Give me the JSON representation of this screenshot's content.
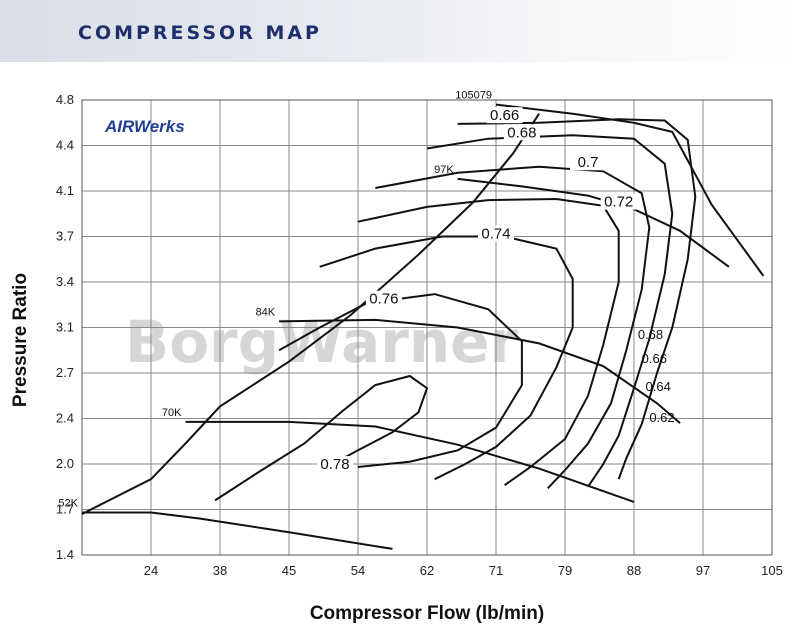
{
  "header": {
    "title": "COMPRESSOR MAP"
  },
  "brand": {
    "logo_text": "AIRWerks",
    "watermark": "BorgWarner"
  },
  "colors": {
    "header_text": "#1f2f6e",
    "logo": "#1f3f95",
    "lines": "#111111",
    "grid": "#7a7a7a",
    "watermark": "#c9c9c9"
  },
  "chart_data": {
    "type": "line",
    "title": "",
    "xlabel": "Compressor Flow (lb/min)",
    "ylabel": "Pressure Ratio",
    "xlim": [
      16,
      105
    ],
    "ylim": [
      1.4,
      4.8
    ],
    "x_ticks": [
      "24",
      "38",
      "45",
      "54",
      "62",
      "71",
      "79",
      "88",
      "97",
      "105"
    ],
    "y_ticks": [
      "1.4",
      "1.7",
      "2.0",
      "2.4",
      "2.7",
      "3.1",
      "3.4",
      "3.7",
      "4.1",
      "4.4",
      "4.8"
    ],
    "grid": true,
    "surge_line": [
      [
        16,
        1.67
      ],
      [
        24,
        1.9
      ],
      [
        31,
        2.18
      ],
      [
        38,
        2.48
      ],
      [
        45,
        2.8
      ],
      [
        53,
        3.18
      ],
      [
        61,
        3.58
      ],
      [
        68,
        4.0
      ],
      [
        73,
        4.35
      ],
      [
        76,
        4.68
      ]
    ],
    "speed_lines": [
      {
        "name": "52K",
        "points": [
          [
            16,
            1.68
          ],
          [
            24,
            1.68
          ],
          [
            34,
            1.64
          ],
          [
            45,
            1.55
          ],
          [
            58,
            1.44
          ]
        ]
      },
      {
        "name": "70K",
        "points": [
          [
            31,
            2.37
          ],
          [
            45,
            2.37
          ],
          [
            56,
            2.33
          ],
          [
            66,
            2.17
          ],
          [
            76,
            1.97
          ],
          [
            88,
            1.75
          ]
        ]
      },
      {
        "name": "84K",
        "points": [
          [
            44,
            3.14
          ],
          [
            56,
            3.15
          ],
          [
            66,
            3.1
          ],
          [
            76,
            2.96
          ],
          [
            84,
            2.76
          ],
          [
            91,
            2.5
          ],
          [
            94,
            2.36
          ]
        ]
      },
      {
        "name": "97K",
        "points": [
          [
            66,
            4.18
          ],
          [
            74,
            4.13
          ],
          [
            82,
            4.06
          ],
          [
            88,
            3.94
          ],
          [
            94,
            3.75
          ],
          [
            100,
            3.5
          ]
        ]
      },
      {
        "name": "105079",
        "points": [
          [
            71,
            4.76
          ],
          [
            80,
            4.68
          ],
          [
            88,
            4.6
          ],
          [
            93,
            4.52
          ],
          [
            98,
            3.98
          ],
          [
            104,
            3.44
          ]
        ]
      }
    ],
    "efficiency_islands": [
      {
        "label": "0.66",
        "label_at": [
          72,
          4.64
        ],
        "points": [
          [
            66,
            4.59
          ],
          [
            76,
            4.6
          ],
          [
            86,
            4.63
          ],
          [
            92,
            4.62
          ],
          [
            95,
            4.45
          ],
          [
            96,
            4.05
          ],
          [
            95,
            3.55
          ],
          [
            93,
            3.1
          ],
          [
            91,
            2.7
          ],
          [
            89,
            2.35
          ],
          [
            87,
            2.05
          ],
          [
            86,
            1.9
          ]
        ]
      },
      {
        "label": "0.68",
        "label_at": [
          74,
          4.49
        ],
        "points": [
          [
            62,
            4.38
          ],
          [
            70,
            4.46
          ],
          [
            80,
            4.49
          ],
          [
            88,
            4.46
          ],
          [
            92,
            4.28
          ],
          [
            93,
            3.9
          ],
          [
            92,
            3.45
          ],
          [
            90,
            3.0
          ],
          [
            88,
            2.6
          ],
          [
            86,
            2.25
          ],
          [
            84,
            2.0
          ],
          [
            82,
            1.85
          ]
        ]
      },
      {
        "label": "0.7",
        "label_at": [
          82,
          4.27
        ],
        "points": [
          [
            56,
            4.12
          ],
          [
            66,
            4.22
          ],
          [
            76,
            4.26
          ],
          [
            84,
            4.23
          ],
          [
            89,
            4.08
          ],
          [
            90,
            3.78
          ],
          [
            89,
            3.35
          ],
          [
            87,
            2.9
          ],
          [
            85,
            2.5
          ],
          [
            82,
            2.18
          ],
          [
            79,
            1.96
          ],
          [
            77,
            1.84
          ]
        ]
      },
      {
        "label": "0.72",
        "label_at": [
          86,
          3.98
        ],
        "points": [
          [
            54,
            3.83
          ],
          [
            62,
            3.96
          ],
          [
            70,
            4.02
          ],
          [
            78,
            4.03
          ],
          [
            84,
            3.97
          ],
          [
            86,
            3.75
          ],
          [
            86,
            3.4
          ],
          [
            84,
            2.95
          ],
          [
            82,
            2.55
          ],
          [
            79,
            2.22
          ],
          [
            75,
            1.98
          ],
          [
            72,
            1.86
          ]
        ]
      },
      {
        "label": "0.74",
        "label_at": [
          71,
          3.7
        ],
        "points": [
          [
            49,
            3.5
          ],
          [
            56,
            3.62
          ],
          [
            64,
            3.7
          ],
          [
            72,
            3.7
          ],
          [
            78,
            3.62
          ],
          [
            80,
            3.42
          ],
          [
            80,
            3.1
          ],
          [
            78,
            2.75
          ],
          [
            75,
            2.42
          ],
          [
            71,
            2.15
          ],
          [
            67,
            2.0
          ],
          [
            63,
            1.9
          ]
        ]
      },
      {
        "label": "0.76",
        "label_at": [
          57,
          3.27
        ],
        "points": [
          [
            44,
            2.9
          ],
          [
            49,
            3.1
          ],
          [
            55,
            3.26
          ],
          [
            63,
            3.32
          ],
          [
            70,
            3.22
          ],
          [
            74,
            2.98
          ],
          [
            74,
            2.62
          ],
          [
            71,
            2.32
          ],
          [
            66,
            2.12
          ],
          [
            60,
            2.02
          ],
          [
            54,
            1.98
          ]
        ]
      },
      {
        "label": "0.78",
        "label_at": [
          51,
          1.98
        ],
        "points": [
          [
            37,
            1.76
          ],
          [
            42,
            1.95
          ],
          [
            47,
            2.18
          ],
          [
            52,
            2.45
          ],
          [
            56,
            2.62
          ],
          [
            60,
            2.68
          ],
          [
            62,
            2.6
          ],
          [
            61,
            2.44
          ],
          [
            58,
            2.28
          ],
          [
            54,
            2.12
          ],
          [
            50,
            1.98
          ]
        ]
      }
    ],
    "choke_labels": [
      {
        "label": "0.68",
        "at": [
          88.5,
          3.0
        ]
      },
      {
        "label": "0.66",
        "at": [
          89,
          2.79
        ]
      },
      {
        "label": "0.64",
        "at": [
          89.5,
          2.58
        ]
      },
      {
        "label": "0.62",
        "at": [
          90,
          2.37
        ]
      }
    ]
  }
}
